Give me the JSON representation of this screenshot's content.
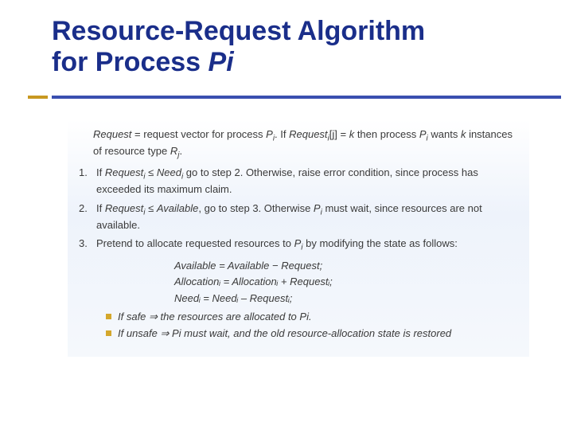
{
  "colors": {
    "title": "#1a2e8a",
    "underline_accent": "#c89820",
    "underline_main": "#3a4fb0",
    "body_text": "#3a3a3a",
    "bullet_dot": "#d4a72c",
    "content_bg_top": "#ffffff",
    "content_bg_bottom": "#eef3fb",
    "page_bg": "#ffffff"
  },
  "typography": {
    "title_fontsize": 34,
    "title_weight": "bold",
    "body_fontsize": 13,
    "title_family": "Verdana",
    "body_family": "Arial"
  },
  "title": {
    "line1": "Resource-Request Algorithm",
    "line2_prefix": "for Process ",
    "line2_italic": "Pi"
  },
  "lead": {
    "a": "Request",
    "b": " = request vector for process ",
    "c": "P",
    "d": ". If ",
    "e": "Request",
    "f": "[j] = ",
    "g": "k",
    "h": " then process ",
    "i": "P",
    "j": " wants ",
    "k": "k",
    "l": " instances of resource type ",
    "m": "R",
    "n": "."
  },
  "steps": [
    {
      "num": "1.",
      "a": "If ",
      "b": "Request",
      "c": " ≤ ",
      "d": "Need",
      "e": " go to step 2. Otherwise, raise error condition, since process has exceeded its maximum claim."
    },
    {
      "num": "2.",
      "a": "If ",
      "b": "Request",
      "c": " ≤ ",
      "d": "Available",
      "e": ", go to step 3. Otherwise ",
      "f": "P",
      "g": " must wait, since resources are not available."
    },
    {
      "num": "3.",
      "a": "Pretend to allocate requested resources to ",
      "b": "P",
      "c": " by modifying the state as follows:"
    }
  ],
  "equations": [
    "Available = Available  − Request;",
    "Allocationᵢ = Allocationᵢ + Requestᵢ;",
    "Needᵢ = Needᵢ – Requestᵢ;"
  ],
  "bullets": [
    "If safe ⇒ the resources are allocated to Pi.",
    "If unsafe ⇒ Pi must wait, and the old resource-allocation state is restored"
  ],
  "sub": {
    "i": "i",
    "j": "j"
  }
}
